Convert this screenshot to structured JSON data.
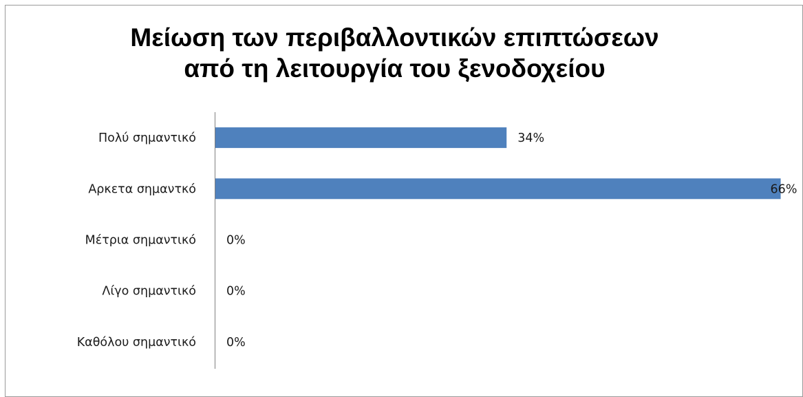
{
  "chart_data": {
    "type": "bar",
    "orientation": "horizontal",
    "title_lines": [
      "Μείωση των περιβαλλοντικών επιπτώσεων",
      "από τη λειτουργία του ξενοδοχείου"
    ],
    "categories": [
      "Πολύ σημαντικό",
      "Αρκετα σημαντκό",
      "Μέτρια σημαντικό",
      "Λίγο σημαντικό",
      "Καθόλου σημαντικό"
    ],
    "values": [
      34,
      66,
      0,
      0,
      0
    ],
    "data_labels": [
      "34%",
      "66%",
      "0%",
      "0%",
      "0%"
    ],
    "value_unit": "%",
    "xlim": [
      0,
      67
    ],
    "grid": false,
    "legend": "none",
    "bar_color": "#4F81BD"
  }
}
